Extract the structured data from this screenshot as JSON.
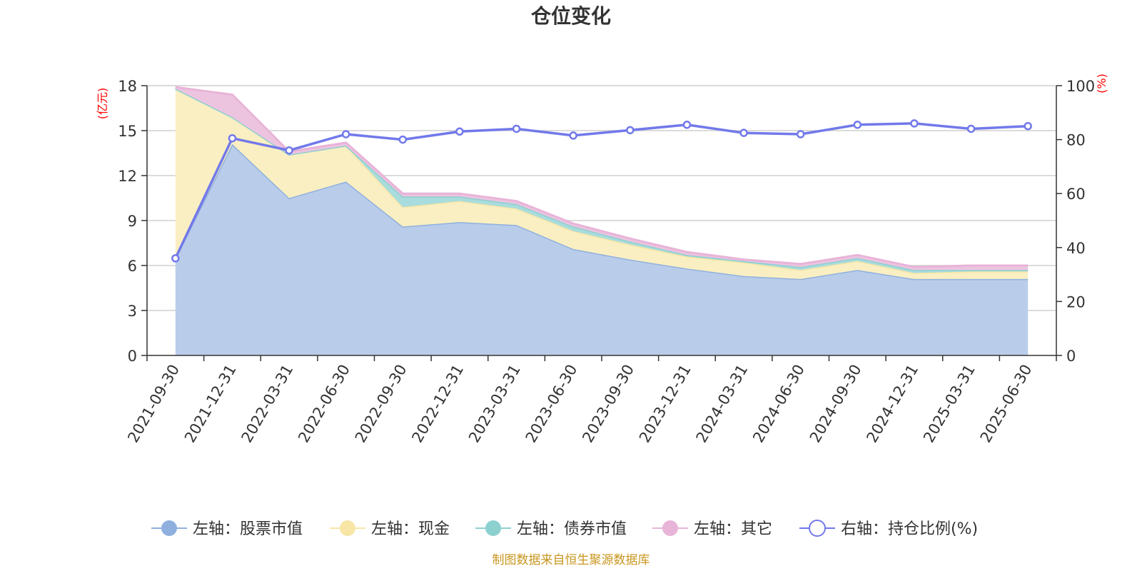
{
  "chart_data": {
    "type": "area",
    "title": "仓位变化",
    "source_note": "制图数据来自恒生聚源数据库",
    "left_axis": {
      "unit": "(亿元)",
      "ylim": [
        0,
        18
      ],
      "ticks": [
        "0",
        "3",
        "6",
        "9",
        "12",
        "15",
        "18"
      ],
      "tick_values": [
        0,
        3,
        6,
        9,
        12,
        15,
        18
      ]
    },
    "right_axis": {
      "unit": "(%)",
      "ylim": [
        0,
        100
      ],
      "ticks": [
        "0",
        "20",
        "40",
        "60",
        "80",
        "100"
      ],
      "tick_values": [
        0,
        20,
        40,
        60,
        80,
        100
      ]
    },
    "categories": [
      "2021-09-30",
      "2021-12-31",
      "2022-03-31",
      "2022-06-30",
      "2022-09-30",
      "2022-12-31",
      "2023-03-31",
      "2023-06-30",
      "2023-09-30",
      "2023-12-31",
      "2024-03-31",
      "2024-06-30",
      "2024-09-30",
      "2024-12-31",
      "2025-03-31",
      "2025-06-30"
    ],
    "grid": true,
    "legend_position": "bottom",
    "series": [
      {
        "name": "左轴：股票市值",
        "axis": "left",
        "kind": "area",
        "color": "#8fb0de",
        "fill": "#b9cdea",
        "values": [
          6.5,
          14.1,
          10.5,
          11.6,
          8.6,
          8.9,
          8.7,
          7.1,
          6.4,
          5.8,
          5.3,
          5.1,
          5.7,
          5.1,
          5.1,
          5.1
        ]
      },
      {
        "name": "左轴：现金",
        "axis": "left",
        "kind": "area",
        "color": "#f7e6a6",
        "fill": "#faefc2",
        "values": [
          11.3,
          1.8,
          2.9,
          2.4,
          1.3,
          1.4,
          1.1,
          1.2,
          1.0,
          0.8,
          0.9,
          0.6,
          0.6,
          0.4,
          0.5,
          0.5
        ]
      },
      {
        "name": "左轴：债券市值",
        "axis": "left",
        "kind": "area",
        "color": "#8dd0d0",
        "fill": "#a9dcdc",
        "values": [
          0,
          0,
          0,
          0,
          0.7,
          0.3,
          0.3,
          0.3,
          0.2,
          0.1,
          0.1,
          0.2,
          0.2,
          0.2,
          0.1,
          0.1
        ]
      },
      {
        "name": "左轴：其它",
        "axis": "left",
        "kind": "area",
        "color": "#e8b4d8",
        "fill": "#ecc4e0",
        "values": [
          0.1,
          1.5,
          0.2,
          0.2,
          0.2,
          0.2,
          0.2,
          0.2,
          0.2,
          0.2,
          0.1,
          0.2,
          0.2,
          0.2,
          0.3,
          0.3
        ]
      },
      {
        "name": "右轴：持仓比例(%)",
        "axis": "right",
        "kind": "line",
        "color": "#7279ea",
        "values": [
          36,
          80.5,
          76,
          82,
          80,
          83,
          84,
          81.5,
          83.5,
          85.5,
          82.5,
          82,
          85.5,
          86,
          84,
          85
        ]
      }
    ]
  }
}
